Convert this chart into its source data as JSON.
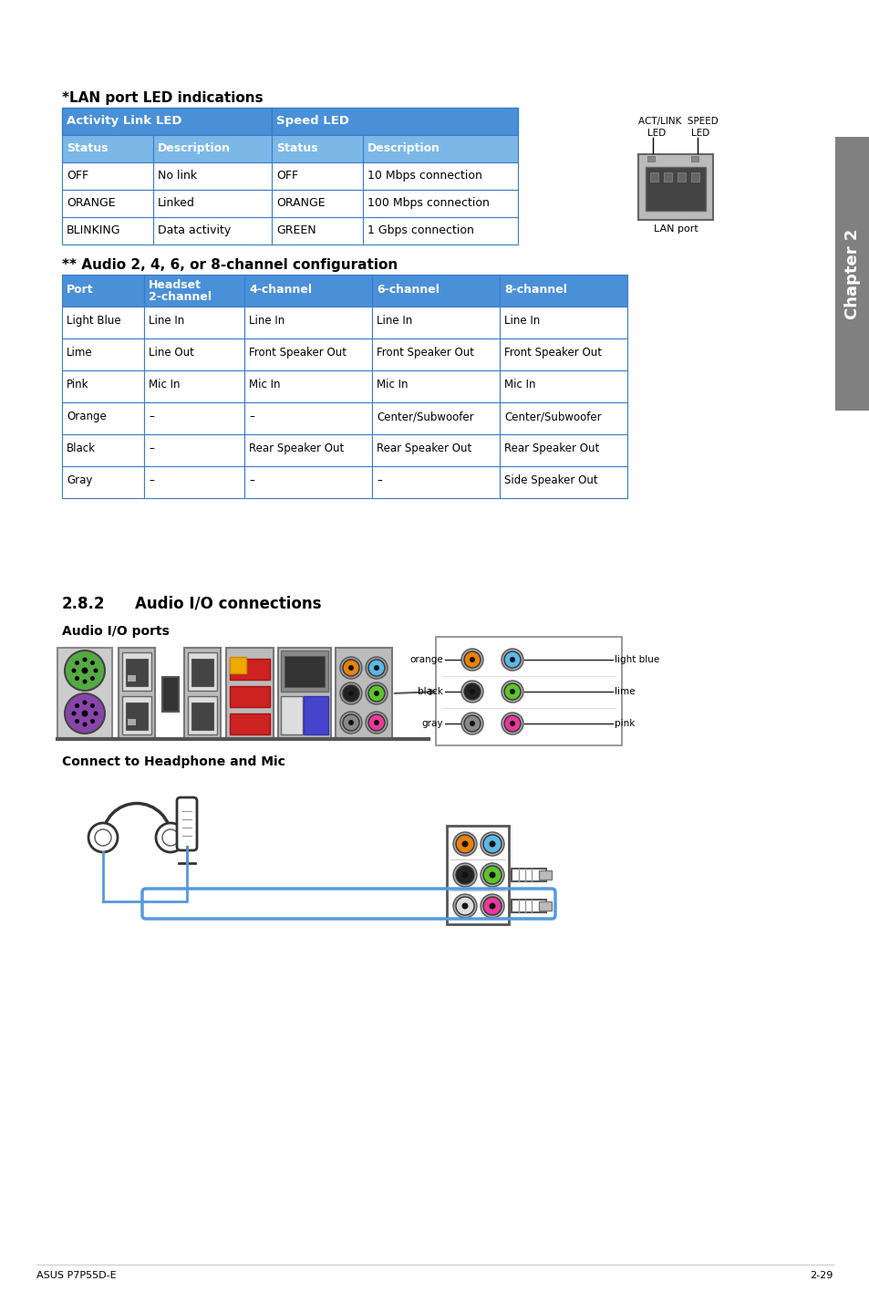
{
  "title_lan": "*LAN port LED indications",
  "title_audio_config": "** Audio 2, 4, 6, or 8-channel configuration",
  "title_282": "2.8.2",
  "title_282_text": "Audio I/O connections",
  "title_audio_ports": "Audio I/O ports",
  "title_headphone": "Connect to Headphone and Mic",
  "footer_left": "ASUS P7P55D-E",
  "footer_right": "2-29",
  "chapter_label": "Chapter 2",
  "table_header_bg": "#4A90D9",
  "table_subheader_bg": "#7BB8E8",
  "table_border": "#3A7BC8",
  "lan_table": {
    "headers": [
      "Activity Link LED",
      "Speed LED"
    ],
    "subheaders": [
      "Status",
      "Description",
      "Status",
      "Description"
    ],
    "rows": [
      [
        "OFF",
        "No link",
        "OFF",
        "10 Mbps connection"
      ],
      [
        "ORANGE",
        "Linked",
        "ORANGE",
        "100 Mbps connection"
      ],
      [
        "BLINKING",
        "Data activity",
        "GREEN",
        "1 Gbps connection"
      ]
    ]
  },
  "audio_table": {
    "headers": [
      "Port",
      "Headset\n2-channel",
      "4-channel",
      "6-channel",
      "8-channel"
    ],
    "rows": [
      [
        "Light Blue",
        "Line In",
        "Line In",
        "Line In",
        "Line In"
      ],
      [
        "Lime",
        "Line Out",
        "Front Speaker Out",
        "Front Speaker Out",
        "Front Speaker Out"
      ],
      [
        "Pink",
        "Mic In",
        "Mic In",
        "Mic In",
        "Mic In"
      ],
      [
        "Orange",
        "–",
        "–",
        "Center/Subwoofer",
        "Center/Subwoofer"
      ],
      [
        "Black",
        "–",
        "Rear Speaker Out",
        "Rear Speaker Out",
        "Rear Speaker Out"
      ],
      [
        "Gray",
        "–",
        "–",
        "–",
        "Side Speaker Out"
      ]
    ]
  },
  "port_colors": {
    "orange": "#E8820A",
    "light_blue": "#5BB8E8",
    "black": "#222222",
    "lime": "#5DC42A",
    "gray_port": "#888888",
    "pink": "#E8399A",
    "white_port": "#DDDDDD"
  },
  "bg_color": "#FFFFFF",
  "text_color": "#000000",
  "chapter_bg": "#808080"
}
